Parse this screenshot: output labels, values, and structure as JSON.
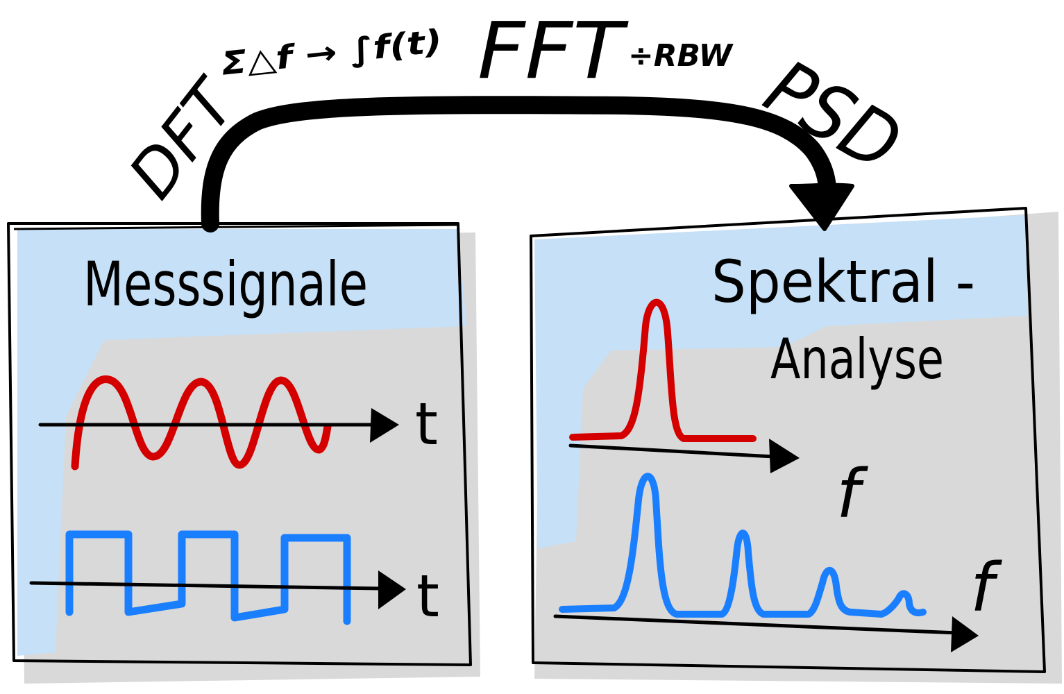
{
  "top_annotations": {
    "dft": "DFT",
    "formula": "Σ△f → ∫f(t)",
    "fft": "FFT",
    "rbw": "÷RBW",
    "psd": "PSD"
  },
  "left_panel": {
    "title": "Messsignale",
    "axis_label_sine": "t",
    "axis_label_square": "t"
  },
  "right_panel": {
    "title_line1": "Spektral -",
    "title_line2": "Analyse",
    "axis_label_top": "f",
    "axis_label_bottom": "f"
  },
  "colors": {
    "ink": "#000000",
    "red": "#d40000",
    "blue": "#1a7fff",
    "highlight": "#c6e0f7",
    "shadow": "#d9d9d9"
  }
}
